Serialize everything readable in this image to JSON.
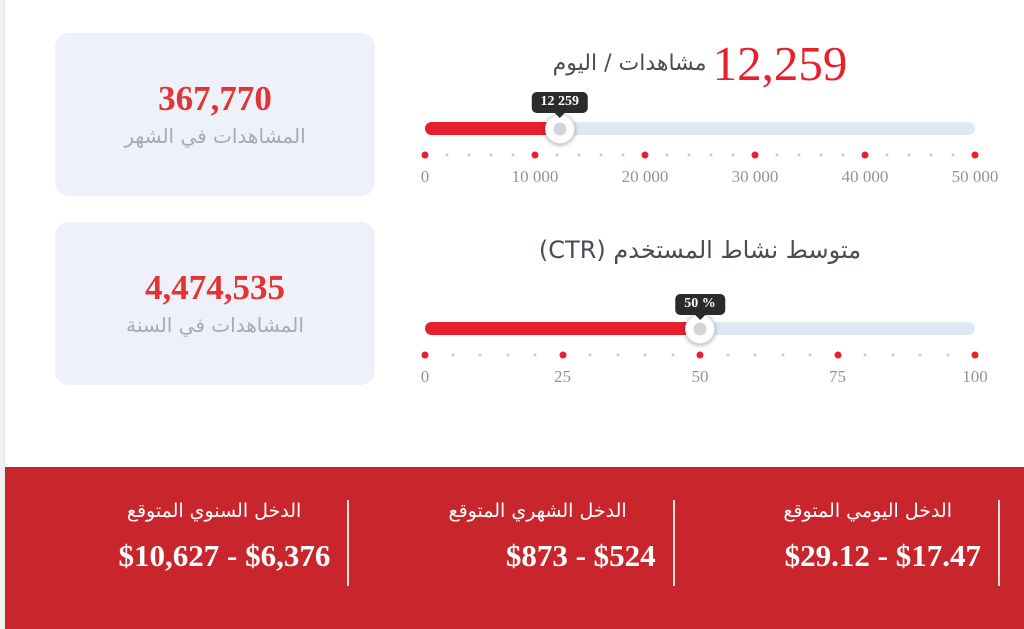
{
  "colors": {
    "accent_red": "#e8202e",
    "num_red": "#e23434",
    "bar_red": "#c9252c",
    "track_blue": "#dde9f5",
    "card_bg": "#eef1f9",
    "tooltip_bg": "#2b2b2b"
  },
  "stats": {
    "monthly": {
      "value": "367,770",
      "label": "المشاهدات في الشهر"
    },
    "yearly": {
      "value": "4,474,535",
      "label": "المشاهدات في السنة"
    }
  },
  "sliders": [
    {
      "title_value": "12,259",
      "title_label": "مشاهدات / اليوم",
      "tooltip": "12 259",
      "percent": 24.5,
      "tick_labels": [
        "0",
        "10 000",
        "20 000",
        "30 000",
        "40 000",
        "50 000"
      ]
    },
    {
      "title": "متوسط نشاط المستخدم (CTR)",
      "tooltip": "50 %",
      "percent": 50,
      "tick_labels": [
        "0",
        "25",
        "50",
        "75",
        "100"
      ]
    }
  ],
  "earnings": {
    "columns": [
      {
        "label": "الدخل اليومي المتوقع",
        "value": "$29.12 - $17.47"
      },
      {
        "label": "الدخل الشهري المتوقع",
        "value": "$873 - $524"
      },
      {
        "label": "الدخل السنوي المتوقع",
        "value": "$10,627 - $6,376"
      }
    ]
  }
}
